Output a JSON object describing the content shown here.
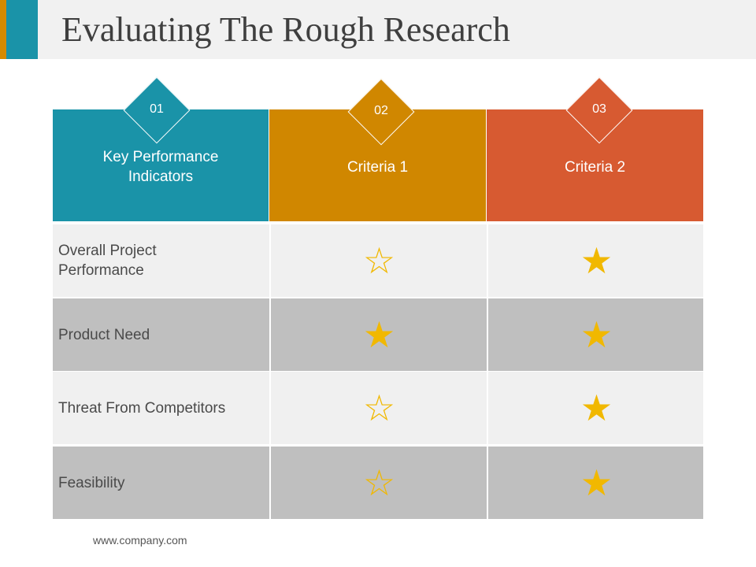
{
  "slide": {
    "title": "Evaluating The Rough Research",
    "footer": "www.company.com"
  },
  "columns": [
    {
      "number": "01",
      "label": "Key Performance Indicators",
      "color": "#1a93a8"
    },
    {
      "number": "02",
      "label": "Criteria 1",
      "color": "#d08700"
    },
    {
      "number": "03",
      "label": "Criteria 2",
      "color": "#d75a31"
    }
  ],
  "rows": [
    {
      "label": "Overall Project Performance",
      "criteria_1": "outline-star-icon",
      "criteria_2": "filled-star-icon"
    },
    {
      "label": "Product Need",
      "criteria_1": "filled-star-icon",
      "criteria_2": "filled-star-icon"
    },
    {
      "label": "Threat From Competitors",
      "criteria_1": "outline-star-icon",
      "criteria_2": "filled-star-icon"
    },
    {
      "label": "Feasibility",
      "criteria_1": "outline-star-icon",
      "criteria_2": "filled-star-icon"
    }
  ],
  "colors": {
    "star": "#f1b800",
    "row_light": "#f0f0f0",
    "row_dark": "#bfbfbf"
  }
}
